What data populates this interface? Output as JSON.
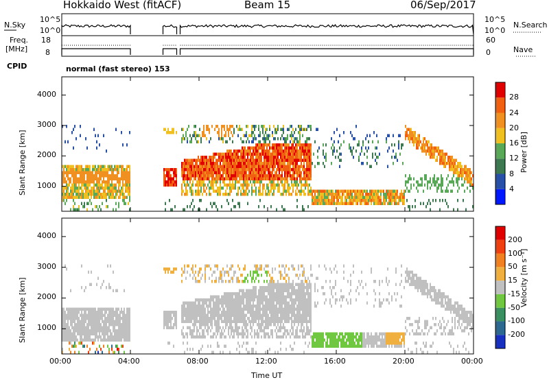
{
  "header": {
    "title": "Hokkaido West (fitACF)",
    "beam": "Beam 15",
    "date": "06/Sep/2017"
  },
  "top_panels": {
    "nsky_label": "N.Sky",
    "nsky_ticks": [
      "10^5",
      "10^0"
    ],
    "nsearch_label": "N.Search",
    "freq_label_1": "Freq.",
    "freq_label_2": "[MHz]",
    "freq_ticks": [
      "18",
      "8"
    ],
    "nave_ticks": [
      "60",
      "0"
    ],
    "nave_label": "Nave",
    "cpid_label": "CPID",
    "cpid_text": "normal (fast stereo) 153"
  },
  "chart_data": [
    {
      "type": "heatmap",
      "name": "power",
      "ylabel": "Slant Range [km]",
      "yticks": [
        1000,
        2000,
        3000,
        4000
      ],
      "ylim": [
        180,
        4600
      ],
      "colorbar_label": "Power [dB]",
      "colorbar_ticks": [
        "4",
        "8",
        "12",
        "16",
        "20",
        "24",
        "28"
      ],
      "colors": [
        "#0018ff",
        "#2850a8",
        "#3c7850",
        "#58a858",
        "#f0c020",
        "#f09020",
        "#f06010",
        "#e00000"
      ],
      "data_gaps_ut": [
        [
          4.0,
          5.9
        ],
        [
          6.7,
          6.9
        ]
      ]
    },
    {
      "type": "heatmap",
      "name": "velocity",
      "ylabel": "Slant Range [km]",
      "yticks": [
        1000,
        2000,
        3000,
        4000
      ],
      "ylim": [
        180,
        4600
      ],
      "colorbar_label": "Velocity [m s⁻¹]",
      "colorbar_ticks": [
        "200",
        "100",
        "50",
        "15",
        "-15",
        "-50",
        "-100",
        "-200"
      ],
      "colors": [
        "#1830c0",
        "#2c6890",
        "#3a9060",
        "#70c840",
        "#c0c0c0",
        "#f0b040",
        "#f08020",
        "#f04010",
        "#e00000"
      ],
      "data_gaps_ut": [
        [
          4.0,
          5.9
        ],
        [
          6.7,
          6.9
        ]
      ]
    }
  ],
  "xaxis": {
    "ticks": [
      "00:00",
      "04:00",
      "08:00",
      "12:00",
      "16:00",
      "20:00",
      "00:00"
    ],
    "label": "Time UT"
  }
}
